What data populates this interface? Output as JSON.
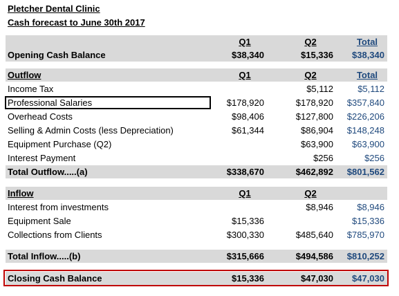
{
  "report": {
    "title": "Pletcher Dental Clinic",
    "subtitle": "Cash forecast to June 30th 2017"
  },
  "columns": {
    "q1": "Q1",
    "q2": "Q2",
    "total": "Total"
  },
  "opening": {
    "label": "Opening Cash Balance",
    "q1": "$38,340",
    "q2": "$15,336",
    "total": "$38,340"
  },
  "outflow": {
    "label": "Outflow",
    "rows": [
      {
        "label": "Income Tax",
        "q1": "",
        "q2": "$5,112",
        "total": "$5,112"
      },
      {
        "label": "Professional Salaries",
        "q1": "$178,920",
        "q2": "$178,920",
        "total": "$357,840"
      },
      {
        "label": "Overhead Costs",
        "q1": "$98,406",
        "q2": "$127,800",
        "total": "$226,206"
      },
      {
        "label": "Selling & Admin Costs (less Depreciation)",
        "q1": "$61,344",
        "q2": "$86,904",
        "total": "$148,248"
      },
      {
        "label": "Equipment Purchase (Q2)",
        "q1": "",
        "q2": "$63,900",
        "total": "$63,900"
      },
      {
        "label": "Interest Payment",
        "q1": "",
        "q2": "$256",
        "total": "$256"
      }
    ],
    "total": {
      "label": "Total Outflow.....(a)",
      "q1": "$338,670",
      "q2": "$462,892",
      "total": "$801,562"
    }
  },
  "inflow": {
    "label": "Inflow",
    "rows": [
      {
        "label": "Interest from investments",
        "q1": "",
        "q2": "$8,946",
        "total": "$8,946"
      },
      {
        "label": "Equipment Sale",
        "q1": "$15,336",
        "q2": "",
        "total": "$15,336"
      },
      {
        "label": "Collections from Clients",
        "q1": "$300,330",
        "q2": "$485,640",
        "total": "$785,970"
      }
    ],
    "total": {
      "label": "Total Inflow.....(b)",
      "q1": "$315,666",
      "q2": "$494,586",
      "total": "$810,252"
    }
  },
  "closing": {
    "label": "Closing Cash Balance",
    "q1": "$15,336",
    "q2": "$47,030",
    "total": "$47,030"
  },
  "colors": {
    "shade": "#d9d9d9",
    "total_text": "#1f497d",
    "highlight_border": "#c00000",
    "selection_border": "#000000"
  }
}
